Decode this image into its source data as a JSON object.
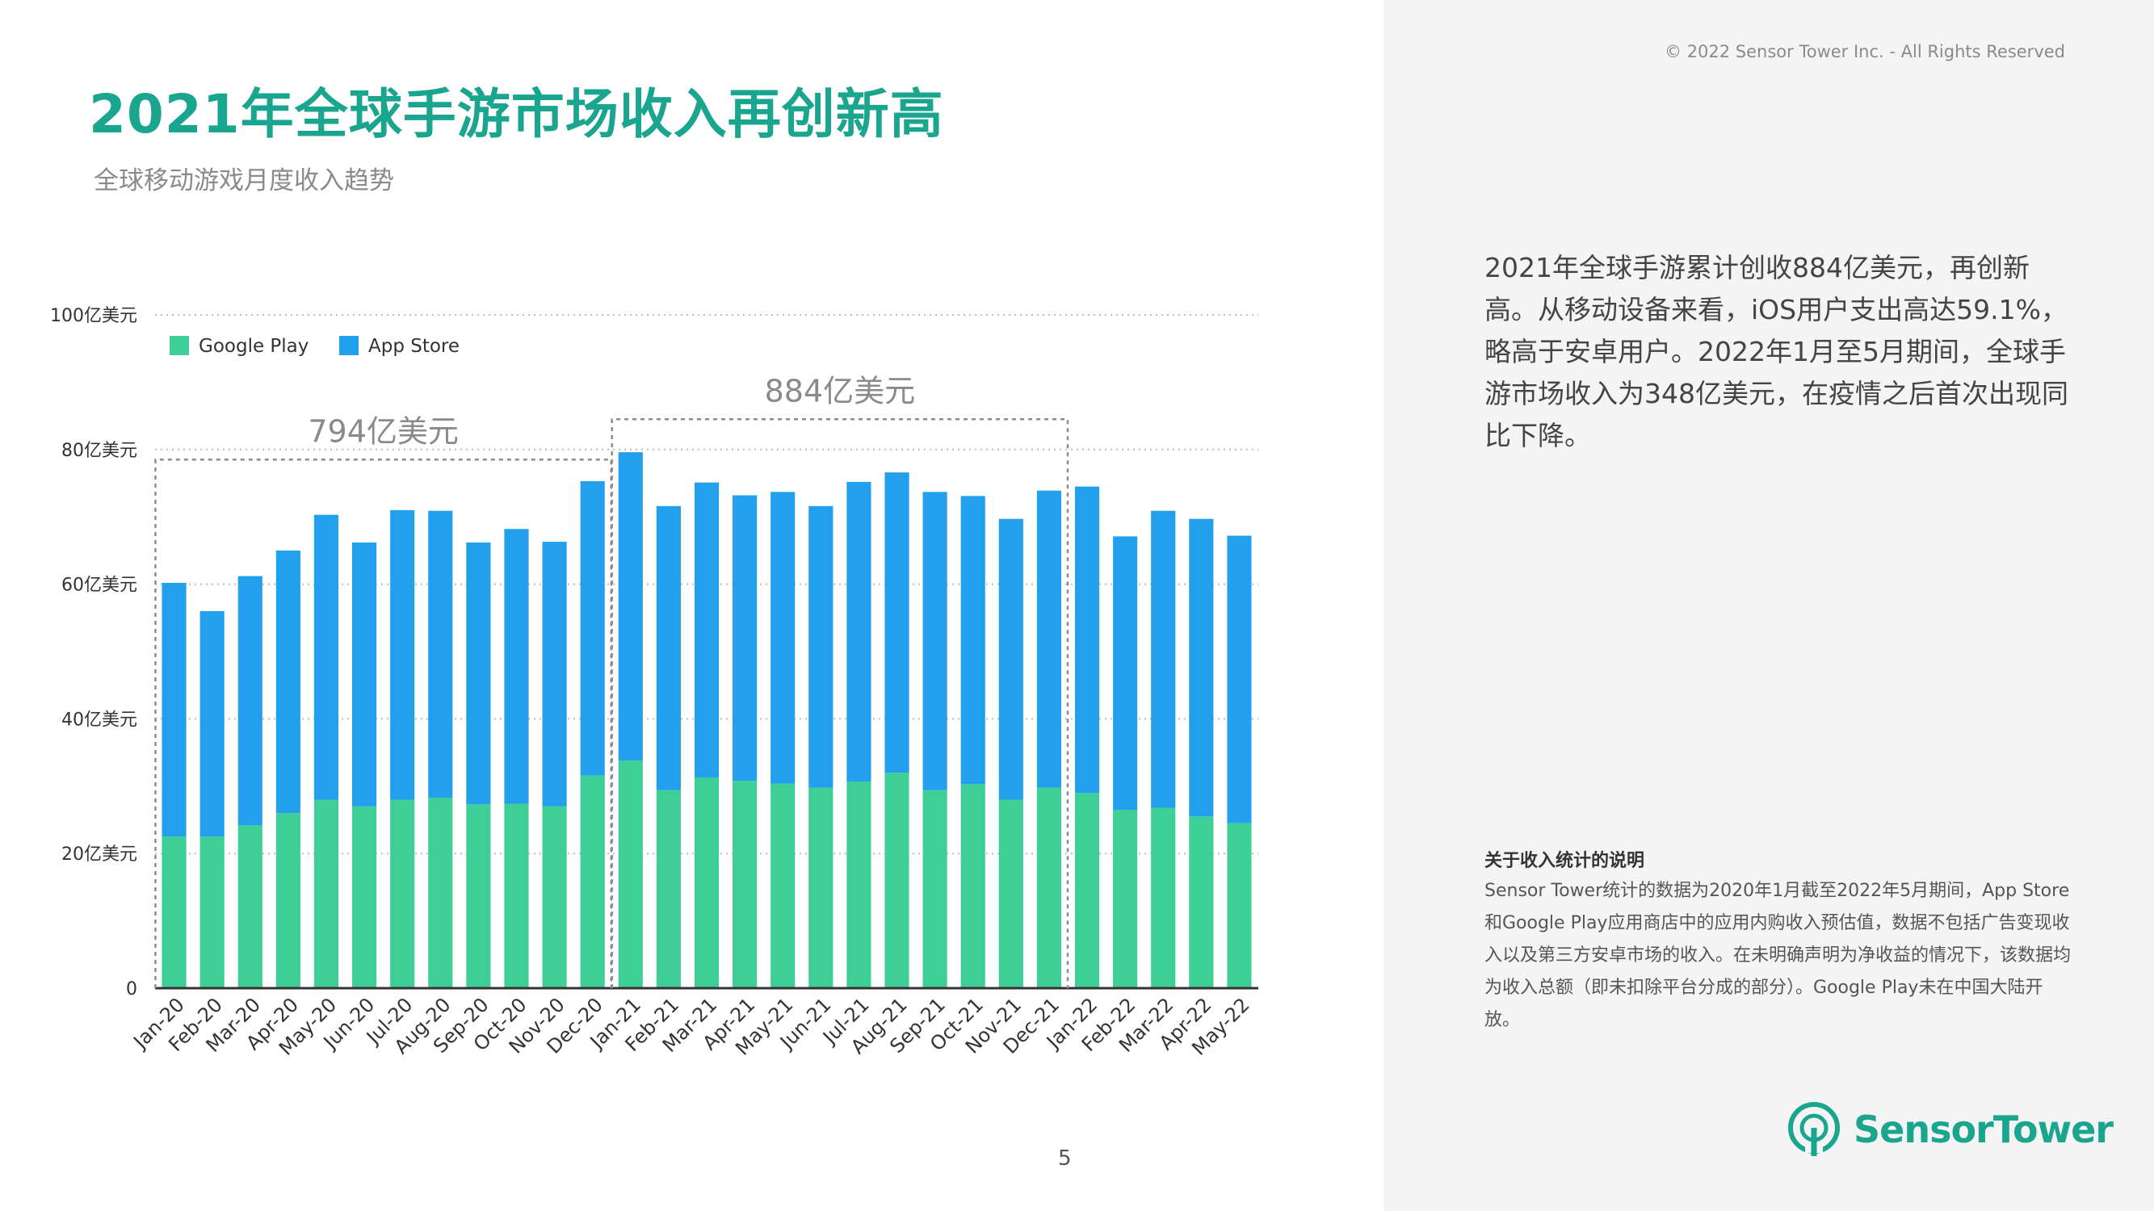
{
  "header": {
    "title": "2021年全球手游市场收入再创新高",
    "subtitle": "全球移动游戏月度收入趋势"
  },
  "sidebar": {
    "copyright": "© 2022 Sensor Tower Inc. - All Rights Reserved",
    "summary": "2021年全球手游累计创收884亿美元，再创新高。从移动设备来看，iOS用户支出高达59.1%，略高于安卓用户。2022年1月至5月期间，全球手游市场收入为348亿美元，在疫情之后首次出现同比下降。",
    "note_title": "关于收入统计的说明",
    "note_body": "Sensor Tower统计的数据为2020年1月截至2022年5月期间，App Store和Google Play应用商店中的应用内购收入预估值，数据不包括广告变现收入以及第三方安卓市场的收入。在未明确声明为净收益的情况下，该数据均为收入总额（即未扣除平台分成的部分）。Google Play未在中国大陆开放。",
    "logo_text": "SensorTower"
  },
  "page_number": "5",
  "colors": {
    "title": "#1aa58f",
    "google_play": "#3ecf97",
    "app_store": "#23a0ed",
    "sidebar_bg": "#f4f4f4"
  },
  "chart_data": {
    "type": "bar",
    "stacked": true,
    "categories": [
      "Jan-20",
      "Feb-20",
      "Mar-20",
      "Apr-20",
      "May-20",
      "Jun-20",
      "Jul-20",
      "Aug-20",
      "Sep-20",
      "Oct-20",
      "Nov-20",
      "Dec-20",
      "Jan-21",
      "Feb-21",
      "Mar-21",
      "Apr-21",
      "May-21",
      "Jun-21",
      "Jul-21",
      "Aug-21",
      "Sep-21",
      "Oct-21",
      "Nov-21",
      "Dec-21",
      "Jan-22",
      "Feb-22",
      "Mar-22",
      "Apr-22",
      "May-22"
    ],
    "series": [
      {
        "name": "Google Play",
        "color": "#3ecf97",
        "values": [
          22.5,
          22.5,
          24.2,
          26,
          28,
          27,
          28,
          28.3,
          27.3,
          27.4,
          27,
          31.6,
          33.8,
          29.4,
          31.3,
          30.8,
          30.4,
          29.8,
          30.7,
          32,
          29.4,
          30.3,
          28,
          29.8,
          29,
          26.5,
          26.8,
          25.5,
          24.5
        ]
      },
      {
        "name": "App Store",
        "color": "#23a0ed",
        "values": [
          37.7,
          33.5,
          37,
          39,
          42.3,
          39.2,
          43,
          42.6,
          38.9,
          40.8,
          39.3,
          43.7,
          45.8,
          42.2,
          43.8,
          42.4,
          43.3,
          41.8,
          44.5,
          44.6,
          44.3,
          42.8,
          41.7,
          44.1,
          45.5,
          40.6,
          44.1,
          44.2,
          42.7
        ]
      }
    ],
    "ylim": [
      0,
      100
    ],
    "yticks": [
      0,
      20,
      40,
      60,
      80,
      100
    ],
    "ytick_labels": [
      "0",
      "20亿美元",
      "40亿美元",
      "60亿美元",
      "80亿美元",
      "100亿美元"
    ],
    "grid": "horizontal-dotted",
    "legend_position": "top-left",
    "annotations": [
      {
        "label": "794亿美元",
        "from": "Jan-20",
        "to": "Dec-20",
        "box_top": 78.5
      },
      {
        "label": "884亿美元",
        "from": "Jan-21",
        "to": "Dec-21",
        "box_top": 84.5
      }
    ]
  }
}
